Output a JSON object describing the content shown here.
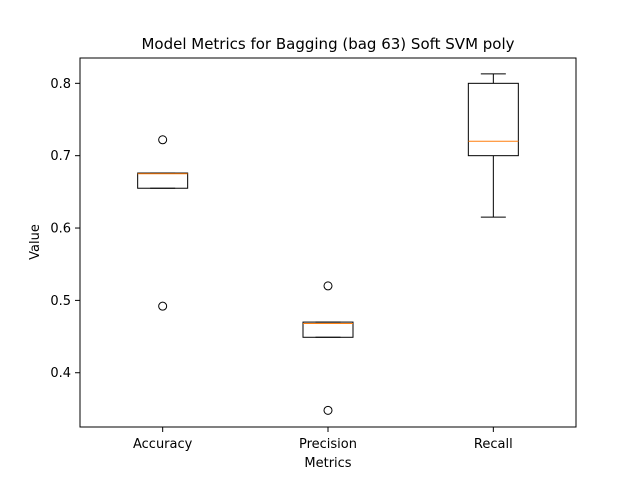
{
  "chart_data": {
    "type": "box",
    "title": "Model Metrics for Bagging (bag 63) Soft SVM poly",
    "xlabel": "Metrics",
    "ylabel": "Value",
    "ylim": [
      0.325,
      0.835
    ],
    "yticks": [
      "0.4",
      "0.5",
      "0.6",
      "0.7",
      "0.8"
    ],
    "categories": [
      "Accuracy",
      "Precision",
      "Recall"
    ],
    "boxes": [
      {
        "name": "Accuracy",
        "whisker_low": 0.655,
        "q1": 0.655,
        "median": 0.675,
        "q3": 0.676,
        "whisker_high": 0.676,
        "outliers": [
          0.722,
          0.492
        ]
      },
      {
        "name": "Precision",
        "whisker_low": 0.449,
        "q1": 0.449,
        "median": 0.468,
        "q3": 0.47,
        "whisker_high": 0.47,
        "outliers": [
          0.52,
          0.348
        ]
      },
      {
        "name": "Recall",
        "whisker_low": 0.615,
        "q1": 0.7,
        "median": 0.72,
        "q3": 0.8,
        "whisker_high": 0.813,
        "outliers": []
      }
    ],
    "colors": {
      "box": "#000000",
      "median": "#ff7f0e",
      "background": "#ffffff"
    },
    "grid": false,
    "legend": "none"
  }
}
